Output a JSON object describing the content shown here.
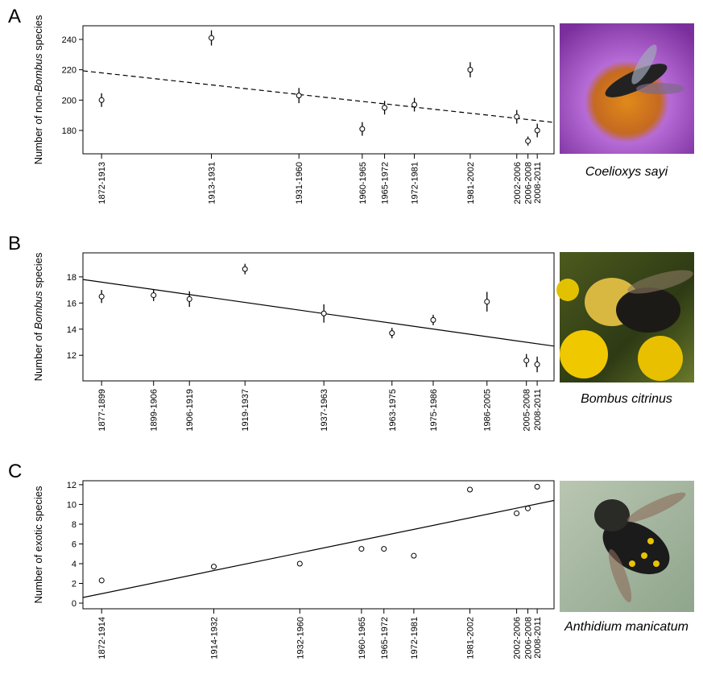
{
  "chart_data": [
    {
      "type": "scatter",
      "panel": "A",
      "ylabel": [
        {
          "text": "Number of non-",
          "italic": false
        },
        {
          "text": "Bombus",
          "italic": true
        },
        {
          "text": " species",
          "italic": false
        }
      ],
      "x": [
        1892.5,
        1922,
        1945.5,
        1962.5,
        1968.5,
        1976.5,
        1991.5,
        2004,
        2007,
        2009.5
      ],
      "values": [
        200,
        241,
        203,
        181,
        195,
        197,
        220,
        189,
        173,
        180
      ],
      "errors": [
        4.5,
        5,
        5,
        4.5,
        4.5,
        4.5,
        5,
        4.5,
        3,
        4.5
      ],
      "xticks": [
        {
          "value": 1892.5,
          "label": "1872-1913"
        },
        {
          "value": 1922,
          "label": "1913-1931"
        },
        {
          "value": 1945.5,
          "label": "1931-1960"
        },
        {
          "value": 1962.5,
          "label": "1960-1965"
        },
        {
          "value": 1968.5,
          "label": "1965-1972"
        },
        {
          "value": 1976.5,
          "label": "1972-1981"
        },
        {
          "value": 1991.5,
          "label": "1981-2002"
        },
        {
          "value": 2004,
          "label": "2002-2006"
        },
        {
          "value": 2007,
          "label": "2006-2008"
        },
        {
          "value": 2009.5,
          "label": "2008-2011"
        }
      ],
      "xlim": [
        1887.5,
        2014
      ],
      "ylim": [
        164.6,
        249
      ],
      "yticks": [
        180,
        200,
        220,
        240
      ],
      "trend": {
        "x": [
          1887.5,
          2014
        ],
        "y": [
          219.3,
          185.3
        ],
        "dashed": true
      },
      "caption": "Coelioxys sayi"
    },
    {
      "type": "scatter",
      "panel": "B",
      "ylabel": [
        {
          "text": "Number of ",
          "italic": false
        },
        {
          "text": "Bombus",
          "italic": true
        },
        {
          "text": " species",
          "italic": false
        }
      ],
      "x": [
        1888,
        1902.5,
        1912.5,
        1928,
        1950,
        1969,
        1980.5,
        1995.5,
        2006.5,
        2009.5
      ],
      "values": [
        16.5,
        16.6,
        16.3,
        18.6,
        15.2,
        13.7,
        14.7,
        16.1,
        11.6,
        11.3
      ],
      "errors": [
        0.5,
        0.45,
        0.6,
        0.4,
        0.7,
        0.4,
        0.4,
        0.75,
        0.5,
        0.6
      ],
      "xticks": [
        {
          "value": 1888,
          "label": "1877-1899"
        },
        {
          "value": 1902.5,
          "label": "1899-1906"
        },
        {
          "value": 1912.5,
          "label": "1906-1919"
        },
        {
          "value": 1928,
          "label": "1919-1937"
        },
        {
          "value": 1950,
          "label": "1937-1963"
        },
        {
          "value": 1969,
          "label": "1963-1975"
        },
        {
          "value": 1980.5,
          "label": "1975-1986"
        },
        {
          "value": 1995.5,
          "label": "1986-2005"
        },
        {
          "value": 2006.5,
          "label": "2005-2008"
        },
        {
          "value": 2009.5,
          "label": "2008-2011"
        }
      ],
      "xlim": [
        1882.8,
        2014.2
      ],
      "ylim": [
        10.04,
        19.84
      ],
      "yticks": [
        12,
        14,
        16,
        18
      ],
      "trend": {
        "x": [
          1882.8,
          2014.2
        ],
        "y": [
          17.8,
          12.7
        ],
        "dashed": false
      },
      "caption": "Bombus citrinus"
    },
    {
      "type": "scatter",
      "panel": "C",
      "ylabel": [
        {
          "text": "Number of exotic species",
          "italic": false
        }
      ],
      "x": [
        1893,
        1923,
        1946,
        1962.5,
        1968.5,
        1976.5,
        1991.5,
        2004,
        2007,
        2009.5
      ],
      "values": [
        2.3,
        3.7,
        4.0,
        5.5,
        5.5,
        4.8,
        11.5,
        9.1,
        9.6,
        11.8
      ],
      "xticks": [
        {
          "value": 1893,
          "label": "1872-1914"
        },
        {
          "value": 1923,
          "label": "1914-1932"
        },
        {
          "value": 1946,
          "label": "1932-1960"
        },
        {
          "value": 1962.5,
          "label": "1960-1965"
        },
        {
          "value": 1968.5,
          "label": "1965-1972"
        },
        {
          "value": 1976.5,
          "label": "1972-1981"
        },
        {
          "value": 1991.5,
          "label": "1981-2002"
        },
        {
          "value": 2004,
          "label": "2002-2006"
        },
        {
          "value": 2007,
          "label": "2006-2008"
        },
        {
          "value": 2009.5,
          "label": "2008-2011"
        }
      ],
      "xlim": [
        1888,
        2014
      ],
      "ylim": [
        -0.57,
        12.4
      ],
      "yticks": [
        0,
        2,
        4,
        6,
        8,
        10,
        12
      ],
      "trend": {
        "x": [
          1888,
          2014
        ],
        "y": [
          0.57,
          10.4
        ],
        "dashed": false
      },
      "caption": "Anthidium manicatum"
    }
  ]
}
